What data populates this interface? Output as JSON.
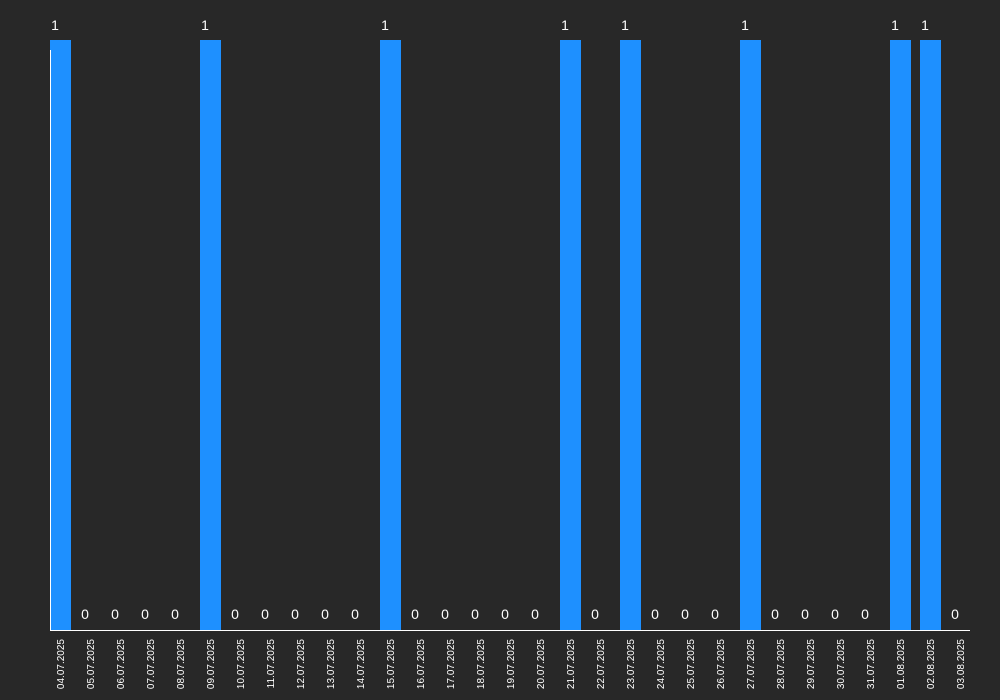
{
  "colors": {
    "background": "#282828",
    "bar": "#1e90ff",
    "text": "#ffffff",
    "axis": "#ffffff"
  },
  "chart_data": {
    "type": "bar",
    "title": "",
    "xlabel": "",
    "ylabel": "",
    "ylim": [
      0,
      1
    ],
    "grid": false,
    "legend": "none",
    "categories": [
      "04.07.2025",
      "05.07.2025",
      "06.07.2025",
      "07.07.2025",
      "08.07.2025",
      "09.07.2025",
      "10.07.2025",
      "11.07.2025",
      "12.07.2025",
      "13.07.2025",
      "14.07.2025",
      "15.07.2025",
      "16.07.2025",
      "17.07.2025",
      "18.07.2025",
      "19.07.2025",
      "20.07.2025",
      "21.07.2025",
      "22.07.2025",
      "23.07.2025",
      "24.07.2025",
      "25.07.2025",
      "26.07.2025",
      "27.07.2025",
      "28.07.2025",
      "29.07.2025",
      "30.07.2025",
      "31.07.2025",
      "01.08.2025",
      "02.08.2025",
      "03.08.2025"
    ],
    "values": [
      1,
      0,
      0,
      0,
      0,
      1,
      0,
      0,
      0,
      0,
      0,
      1,
      0,
      0,
      0,
      0,
      0,
      1,
      0,
      1,
      0,
      0,
      0,
      1,
      0,
      0,
      0,
      0,
      1,
      1,
      0
    ]
  }
}
